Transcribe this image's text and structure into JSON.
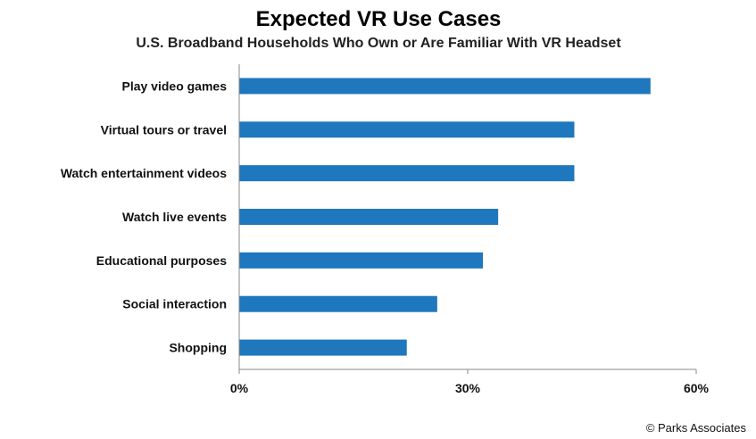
{
  "chart_data": {
    "type": "bar",
    "orientation": "horizontal",
    "title": "Expected VR Use Cases",
    "subtitle": "U.S. Broadband Households Who Own or Are Familiar With VR Headset",
    "categories": [
      "Play video games",
      "Virtual tours or travel",
      "Watch entertainment videos",
      "Watch live events",
      "Educational purposes",
      "Social interaction",
      "Shopping"
    ],
    "values": [
      54,
      44,
      44,
      34,
      32,
      26,
      22
    ],
    "xlim": [
      0,
      60
    ],
    "xticks": [
      0,
      30,
      60
    ],
    "xtick_labels": [
      "0%",
      "30%",
      "60%"
    ],
    "grid": false,
    "bar_color": "#1f77bd",
    "axis_color": "#888888"
  },
  "footer": {
    "credit": "© Parks Associates"
  }
}
